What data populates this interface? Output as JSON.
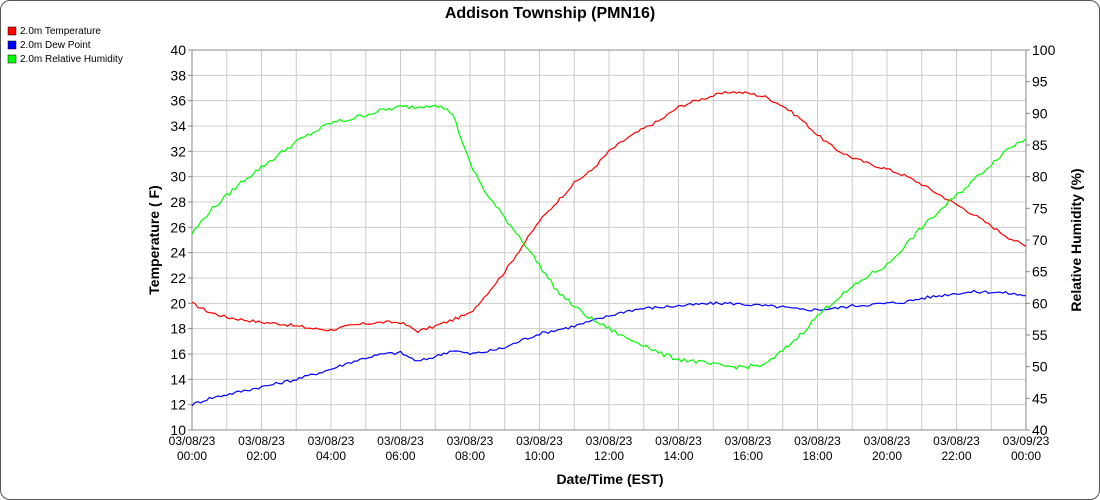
{
  "chart_data": {
    "type": "line",
    "title": "Addison Township (PMN16)",
    "xlabel": "Date/Time (EST)",
    "ylabel": "Temperature ( F)",
    "y2label": "Relative Humidity (%)",
    "ylim": [
      10,
      40
    ],
    "y2lim": [
      40,
      100
    ],
    "x_ticks": [
      {
        "date": "03/08/23",
        "time": "00:00"
      },
      {
        "date": "03/08/23",
        "time": "02:00"
      },
      {
        "date": "03/08/23",
        "time": "04:00"
      },
      {
        "date": "03/08/23",
        "time": "06:00"
      },
      {
        "date": "03/08/23",
        "time": "08:00"
      },
      {
        "date": "03/08/23",
        "time": "10:00"
      },
      {
        "date": "03/08/23",
        "time": "12:00"
      },
      {
        "date": "03/08/23",
        "time": "14:00"
      },
      {
        "date": "03/08/23",
        "time": "16:00"
      },
      {
        "date": "03/08/23",
        "time": "18:00"
      },
      {
        "date": "03/08/23",
        "time": "20:00"
      },
      {
        "date": "03/08/23",
        "time": "22:00"
      },
      {
        "date": "03/09/23",
        "time": "00:00"
      }
    ],
    "y_ticks": [
      "10",
      "12",
      "14",
      "16",
      "18",
      "20",
      "22",
      "24",
      "26",
      "28",
      "30",
      "32",
      "34",
      "36",
      "38",
      "40"
    ],
    "y2_ticks": [
      "40",
      "45",
      "50",
      "55",
      "60",
      "65",
      "70",
      "75",
      "80",
      "85",
      "90",
      "95",
      "100"
    ],
    "grid": true,
    "legend_position": "top-left",
    "x_hours": [
      0,
      0.5,
      1,
      1.5,
      2,
      2.5,
      3,
      3.5,
      4,
      4.5,
      5,
      5.5,
      6,
      6.5,
      7,
      7.5,
      8,
      8.5,
      9,
      9.5,
      10,
      10.5,
      11,
      11.5,
      12,
      12.5,
      13,
      13.5,
      14,
      14.5,
      15,
      15.5,
      16,
      16.5,
      17,
      17.5,
      18,
      18.5,
      19,
      19.5,
      20,
      20.5,
      21,
      21.5,
      22,
      22.5,
      23,
      23.5,
      24
    ],
    "series": [
      {
        "name": "2.0m Temperature",
        "color": "#ff0000",
        "axis": "left",
        "values": [
          20.0,
          19.3,
          18.9,
          18.7,
          18.5,
          18.4,
          18.2,
          18.0,
          17.9,
          18.2,
          18.4,
          18.5,
          18.5,
          17.8,
          18.2,
          18.7,
          19.2,
          20.8,
          22.5,
          24.5,
          26.5,
          28.0,
          29.5,
          30.5,
          32.0,
          33.0,
          33.8,
          34.5,
          35.5,
          36.0,
          36.4,
          36.7,
          36.6,
          36.3,
          35.6,
          34.6,
          33.3,
          32.2,
          31.5,
          31.0,
          30.6,
          30.1,
          29.4,
          28.6,
          27.8,
          27.0,
          26.1,
          25.2,
          24.5
        ]
      },
      {
        "name": "2.0m Dew Point",
        "color": "#0000ff",
        "axis": "left",
        "values": [
          12.0,
          12.5,
          12.8,
          13.1,
          13.4,
          13.7,
          14.0,
          14.4,
          14.8,
          15.3,
          15.7,
          16.0,
          16.1,
          15.4,
          15.8,
          16.3,
          16.0,
          16.2,
          16.5,
          17.1,
          17.6,
          17.9,
          18.2,
          18.6,
          19.0,
          19.4,
          19.6,
          19.7,
          19.8,
          19.9,
          20.0,
          20.0,
          19.9,
          19.8,
          19.7,
          19.5,
          19.5,
          19.6,
          19.8,
          19.9,
          20.0,
          20.1,
          20.4,
          20.6,
          20.8,
          20.9,
          20.9,
          20.8,
          20.6
        ]
      },
      {
        "name": "2.0m Relative Humidity",
        "color": "#00ff00",
        "axis": "right",
        "values": [
          71.0,
          74.5,
          77.0,
          79.5,
          81.5,
          83.5,
          85.5,
          87.0,
          88.5,
          89.0,
          89.8,
          90.5,
          91.0,
          91.0,
          91.5,
          90.0,
          82.0,
          77.0,
          73.5,
          70.0,
          66.0,
          62.0,
          59.5,
          57.5,
          56.0,
          54.5,
          53.5,
          52.0,
          51.2,
          50.8,
          50.3,
          50.0,
          50.0,
          50.3,
          52.5,
          55.0,
          58.0,
          60.5,
          62.5,
          64.5,
          66.0,
          69.0,
          72.0,
          74.5,
          77.0,
          79.5,
          82.0,
          84.5,
          86.0
        ]
      }
    ]
  }
}
